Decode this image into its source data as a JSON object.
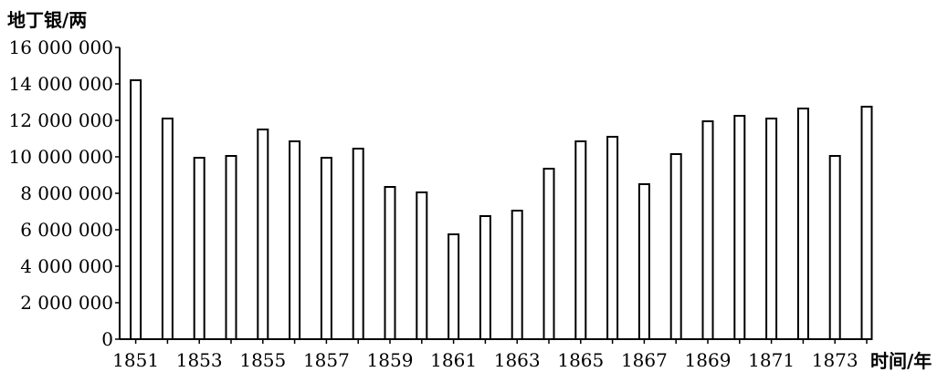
{
  "chart_data": {
    "type": "bar",
    "title": "",
    "ylabel": "地丁银/两",
    "xlabel": "时间/年",
    "ylim": [
      0,
      16000000
    ],
    "y_ticks": [
      0,
      2000000,
      4000000,
      6000000,
      8000000,
      10000000,
      12000000,
      14000000,
      16000000
    ],
    "y_tick_labels": [
      "0",
      "2 000 000",
      "4 000 000",
      "6 000 000",
      "8 000 000",
      "10 000 000",
      "12 000 000",
      "14 000 000",
      "16 000 000"
    ],
    "x_tick_labels": [
      "1851",
      "1853",
      "1855",
      "1857",
      "1859",
      "1861",
      "1863",
      "1865",
      "1867",
      "1869",
      "1871",
      "1873"
    ],
    "categories": [
      "1851",
      "1852",
      "1853",
      "1854",
      "1855",
      "1856",
      "1857",
      "1858",
      "1859",
      "1860",
      "1861",
      "1862",
      "1863",
      "1864",
      "1865",
      "1866",
      "1867",
      "1868",
      "1869",
      "1870",
      "1871",
      "1872",
      "1873",
      "1874"
    ],
    "values": [
      14200000,
      12100000,
      9950000,
      10050000,
      11500000,
      10850000,
      9950000,
      10450000,
      8350000,
      8050000,
      5750000,
      6750000,
      7050000,
      9350000,
      10850000,
      11100000,
      8500000,
      10150000,
      11950000,
      12250000,
      12100000,
      12650000,
      10050000,
      12750000
    ],
    "grid": false,
    "legend": "none",
    "colors": {
      "bar_fill": "#ffffff",
      "bar_stroke": "#000000",
      "axis": "#000000"
    }
  }
}
